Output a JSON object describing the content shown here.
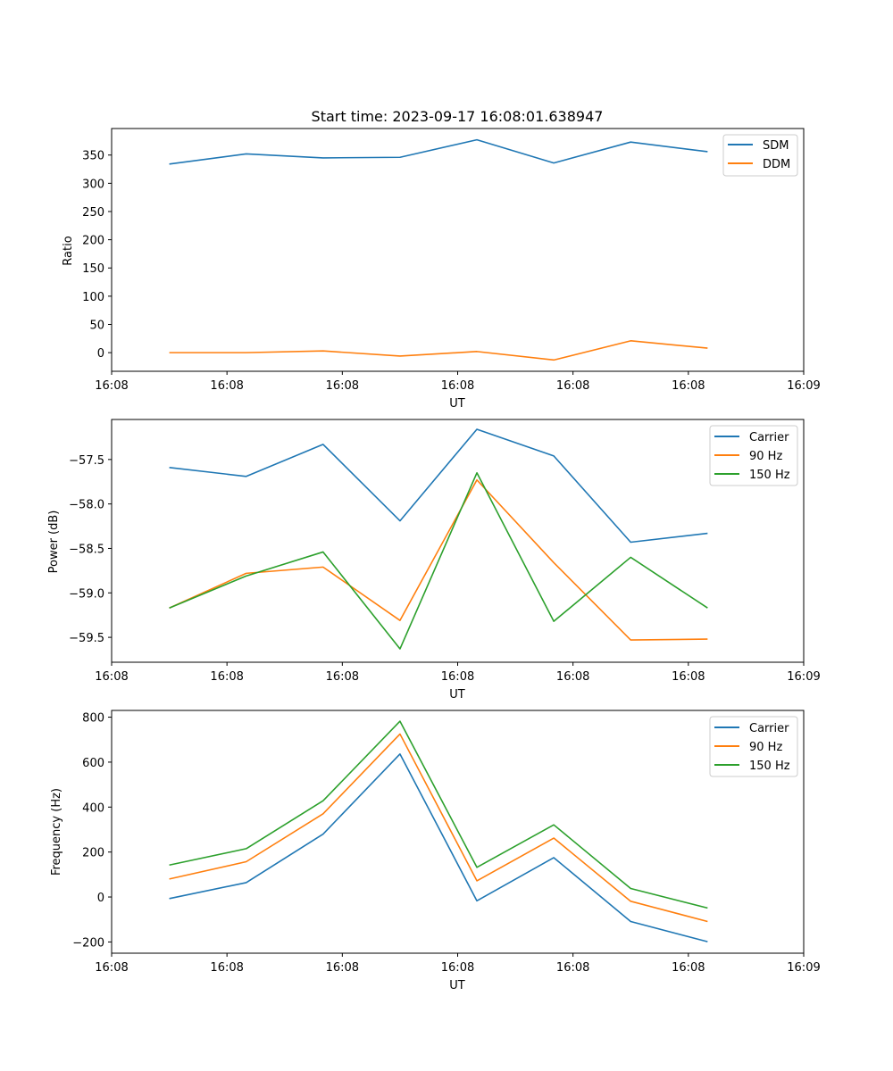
{
  "colors": {
    "blue": "#1f77b4",
    "orange": "#ff7f0e",
    "green": "#2ca02c"
  },
  "chart_data": [
    {
      "type": "line",
      "title": "Start time: 2023-09-17 16:08:01.638947",
      "xlabel": "UT",
      "ylabel": "Ratio",
      "xlim": [
        0,
        9
      ],
      "ylim": [
        -33,
        397
      ],
      "x": [
        0.75,
        1.75,
        2.75,
        3.75,
        4.75,
        5.75,
        6.75,
        7.75
      ],
      "xticks": [
        0,
        1.5,
        3,
        4.5,
        6,
        7.5,
        9
      ],
      "xtick_labels": [
        "16:08",
        "16:08",
        "16:08",
        "16:08",
        "16:08",
        "16:08",
        "16:09"
      ],
      "yticks": [
        0,
        50,
        100,
        150,
        200,
        250,
        300,
        350
      ],
      "ytick_labels": [
        "0",
        "50",
        "100",
        "150",
        "200",
        "250",
        "300",
        "350"
      ],
      "legend": "top-right",
      "series": [
        {
          "name": "SDM",
          "color": "#1f77b4",
          "values": [
            334,
            352,
            345,
            346,
            377,
            336,
            373,
            356
          ]
        },
        {
          "name": "DDM",
          "color": "#ff7f0e",
          "values": [
            0,
            0,
            3,
            -6,
            2,
            -13,
            21,
            8
          ]
        }
      ]
    },
    {
      "type": "line",
      "title": "",
      "xlabel": "UT",
      "ylabel": "Power (dB)",
      "xlim": [
        0,
        9
      ],
      "ylim": [
        -59.78,
        -57.05
      ],
      "x": [
        0.75,
        1.75,
        2.75,
        3.75,
        4.75,
        5.75,
        6.75,
        7.75
      ],
      "xticks": [
        0,
        1.5,
        3,
        4.5,
        6,
        7.5,
        9
      ],
      "xtick_labels": [
        "16:08",
        "16:08",
        "16:08",
        "16:08",
        "16:08",
        "16:08",
        "16:09"
      ],
      "yticks": [
        -59.5,
        -59.0,
        -58.5,
        -58.0,
        -57.5
      ],
      "ytick_labels": [
        "−59.5",
        "−59.0",
        "−58.5",
        "−58.0",
        "−57.5"
      ],
      "legend": "top-right",
      "series": [
        {
          "name": "Carrier",
          "color": "#1f77b4",
          "values": [
            -57.59,
            -57.69,
            -57.33,
            -58.19,
            -57.16,
            -57.46,
            -58.43,
            -58.33
          ]
        },
        {
          "name": "90 Hz",
          "color": "#ff7f0e",
          "values": [
            -59.17,
            -58.78,
            -58.71,
            -59.31,
            -57.73,
            -58.66,
            -59.53,
            -59.52
          ]
        },
        {
          "name": "150 Hz",
          "color": "#2ca02c",
          "values": [
            -59.17,
            -58.81,
            -58.54,
            -59.63,
            -57.65,
            -59.32,
            -58.6,
            -59.17
          ]
        }
      ]
    },
    {
      "type": "line",
      "title": "",
      "xlabel": "UT",
      "ylabel": "Frequency (Hz)",
      "xlim": [
        0,
        9
      ],
      "ylim": [
        -250,
        830
      ],
      "x": [
        0.75,
        1.75,
        2.75,
        3.75,
        4.75,
        5.75,
        6.75,
        7.75
      ],
      "xticks": [
        0,
        1.5,
        3,
        4.5,
        6,
        7.5,
        9
      ],
      "xtick_labels": [
        "16:08",
        "16:08",
        "16:08",
        "16:08",
        "16:08",
        "16:08",
        "16:09"
      ],
      "yticks": [
        -200,
        0,
        200,
        400,
        600,
        800
      ],
      "ytick_labels": [
        "−200",
        "0",
        "200",
        "400",
        "600",
        "800"
      ],
      "legend": "top-right",
      "series": [
        {
          "name": "Carrier",
          "color": "#1f77b4",
          "values": [
            -7,
            64,
            280,
            636,
            -17,
            175,
            -109,
            -199
          ]
        },
        {
          "name": "90 Hz",
          "color": "#ff7f0e",
          "values": [
            80,
            157,
            370,
            725,
            72,
            262,
            -19,
            -109
          ]
        },
        {
          "name": "150 Hz",
          "color": "#2ca02c",
          "values": [
            142,
            215,
            428,
            782,
            132,
            321,
            38,
            -49
          ]
        }
      ]
    }
  ]
}
